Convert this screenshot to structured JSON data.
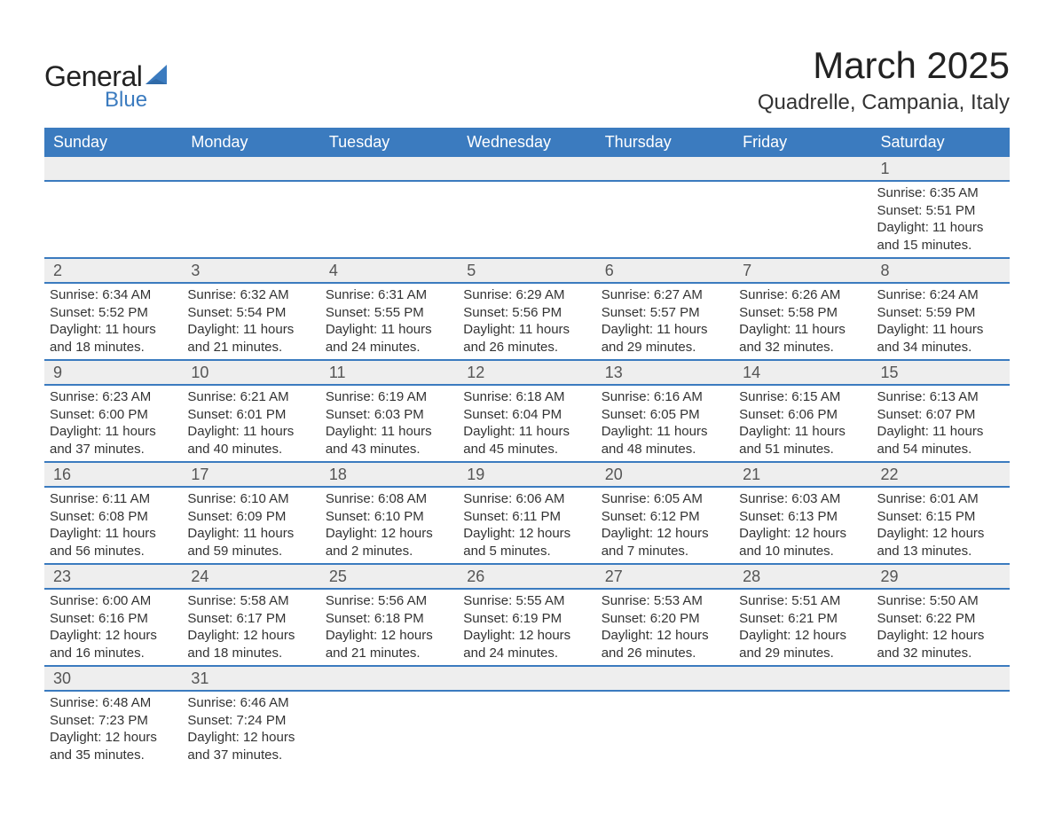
{
  "logo": {
    "word1": "General",
    "word2": "Blue",
    "text_color": "#222222",
    "accent_color": "#3b7bbf"
  },
  "title": "March 2025",
  "location": "Quadrelle, Campania, Italy",
  "colors": {
    "header_bg": "#3b7bbf",
    "header_text": "#ffffff",
    "daynum_bg": "#eeeeee",
    "row_border": "#3b7bbf",
    "body_text": "#333333"
  },
  "day_headers": [
    "Sunday",
    "Monday",
    "Tuesday",
    "Wednesday",
    "Thursday",
    "Friday",
    "Saturday"
  ],
  "weeks": [
    [
      null,
      null,
      null,
      null,
      null,
      null,
      {
        "n": "1",
        "sunrise": "Sunrise: 6:35 AM",
        "sunset": "Sunset: 5:51 PM",
        "d1": "Daylight: 11 hours",
        "d2": "and 15 minutes."
      }
    ],
    [
      {
        "n": "2",
        "sunrise": "Sunrise: 6:34 AM",
        "sunset": "Sunset: 5:52 PM",
        "d1": "Daylight: 11 hours",
        "d2": "and 18 minutes."
      },
      {
        "n": "3",
        "sunrise": "Sunrise: 6:32 AM",
        "sunset": "Sunset: 5:54 PM",
        "d1": "Daylight: 11 hours",
        "d2": "and 21 minutes."
      },
      {
        "n": "4",
        "sunrise": "Sunrise: 6:31 AM",
        "sunset": "Sunset: 5:55 PM",
        "d1": "Daylight: 11 hours",
        "d2": "and 24 minutes."
      },
      {
        "n": "5",
        "sunrise": "Sunrise: 6:29 AM",
        "sunset": "Sunset: 5:56 PM",
        "d1": "Daylight: 11 hours",
        "d2": "and 26 minutes."
      },
      {
        "n": "6",
        "sunrise": "Sunrise: 6:27 AM",
        "sunset": "Sunset: 5:57 PM",
        "d1": "Daylight: 11 hours",
        "d2": "and 29 minutes."
      },
      {
        "n": "7",
        "sunrise": "Sunrise: 6:26 AM",
        "sunset": "Sunset: 5:58 PM",
        "d1": "Daylight: 11 hours",
        "d2": "and 32 minutes."
      },
      {
        "n": "8",
        "sunrise": "Sunrise: 6:24 AM",
        "sunset": "Sunset: 5:59 PM",
        "d1": "Daylight: 11 hours",
        "d2": "and 34 minutes."
      }
    ],
    [
      {
        "n": "9",
        "sunrise": "Sunrise: 6:23 AM",
        "sunset": "Sunset: 6:00 PM",
        "d1": "Daylight: 11 hours",
        "d2": "and 37 minutes."
      },
      {
        "n": "10",
        "sunrise": "Sunrise: 6:21 AM",
        "sunset": "Sunset: 6:01 PM",
        "d1": "Daylight: 11 hours",
        "d2": "and 40 minutes."
      },
      {
        "n": "11",
        "sunrise": "Sunrise: 6:19 AM",
        "sunset": "Sunset: 6:03 PM",
        "d1": "Daylight: 11 hours",
        "d2": "and 43 minutes."
      },
      {
        "n": "12",
        "sunrise": "Sunrise: 6:18 AM",
        "sunset": "Sunset: 6:04 PM",
        "d1": "Daylight: 11 hours",
        "d2": "and 45 minutes."
      },
      {
        "n": "13",
        "sunrise": "Sunrise: 6:16 AM",
        "sunset": "Sunset: 6:05 PM",
        "d1": "Daylight: 11 hours",
        "d2": "and 48 minutes."
      },
      {
        "n": "14",
        "sunrise": "Sunrise: 6:15 AM",
        "sunset": "Sunset: 6:06 PM",
        "d1": "Daylight: 11 hours",
        "d2": "and 51 minutes."
      },
      {
        "n": "15",
        "sunrise": "Sunrise: 6:13 AM",
        "sunset": "Sunset: 6:07 PM",
        "d1": "Daylight: 11 hours",
        "d2": "and 54 minutes."
      }
    ],
    [
      {
        "n": "16",
        "sunrise": "Sunrise: 6:11 AM",
        "sunset": "Sunset: 6:08 PM",
        "d1": "Daylight: 11 hours",
        "d2": "and 56 minutes."
      },
      {
        "n": "17",
        "sunrise": "Sunrise: 6:10 AM",
        "sunset": "Sunset: 6:09 PM",
        "d1": "Daylight: 11 hours",
        "d2": "and 59 minutes."
      },
      {
        "n": "18",
        "sunrise": "Sunrise: 6:08 AM",
        "sunset": "Sunset: 6:10 PM",
        "d1": "Daylight: 12 hours",
        "d2": "and 2 minutes."
      },
      {
        "n": "19",
        "sunrise": "Sunrise: 6:06 AM",
        "sunset": "Sunset: 6:11 PM",
        "d1": "Daylight: 12 hours",
        "d2": "and 5 minutes."
      },
      {
        "n": "20",
        "sunrise": "Sunrise: 6:05 AM",
        "sunset": "Sunset: 6:12 PM",
        "d1": "Daylight: 12 hours",
        "d2": "and 7 minutes."
      },
      {
        "n": "21",
        "sunrise": "Sunrise: 6:03 AM",
        "sunset": "Sunset: 6:13 PM",
        "d1": "Daylight: 12 hours",
        "d2": "and 10 minutes."
      },
      {
        "n": "22",
        "sunrise": "Sunrise: 6:01 AM",
        "sunset": "Sunset: 6:15 PM",
        "d1": "Daylight: 12 hours",
        "d2": "and 13 minutes."
      }
    ],
    [
      {
        "n": "23",
        "sunrise": "Sunrise: 6:00 AM",
        "sunset": "Sunset: 6:16 PM",
        "d1": "Daylight: 12 hours",
        "d2": "and 16 minutes."
      },
      {
        "n": "24",
        "sunrise": "Sunrise: 5:58 AM",
        "sunset": "Sunset: 6:17 PM",
        "d1": "Daylight: 12 hours",
        "d2": "and 18 minutes."
      },
      {
        "n": "25",
        "sunrise": "Sunrise: 5:56 AM",
        "sunset": "Sunset: 6:18 PM",
        "d1": "Daylight: 12 hours",
        "d2": "and 21 minutes."
      },
      {
        "n": "26",
        "sunrise": "Sunrise: 5:55 AM",
        "sunset": "Sunset: 6:19 PM",
        "d1": "Daylight: 12 hours",
        "d2": "and 24 minutes."
      },
      {
        "n": "27",
        "sunrise": "Sunrise: 5:53 AM",
        "sunset": "Sunset: 6:20 PM",
        "d1": "Daylight: 12 hours",
        "d2": "and 26 minutes."
      },
      {
        "n": "28",
        "sunrise": "Sunrise: 5:51 AM",
        "sunset": "Sunset: 6:21 PM",
        "d1": "Daylight: 12 hours",
        "d2": "and 29 minutes."
      },
      {
        "n": "29",
        "sunrise": "Sunrise: 5:50 AM",
        "sunset": "Sunset: 6:22 PM",
        "d1": "Daylight: 12 hours",
        "d2": "and 32 minutes."
      }
    ],
    [
      {
        "n": "30",
        "sunrise": "Sunrise: 6:48 AM",
        "sunset": "Sunset: 7:23 PM",
        "d1": "Daylight: 12 hours",
        "d2": "and 35 minutes."
      },
      {
        "n": "31",
        "sunrise": "Sunrise: 6:46 AM",
        "sunset": "Sunset: 7:24 PM",
        "d1": "Daylight: 12 hours",
        "d2": "and 37 minutes."
      },
      null,
      null,
      null,
      null,
      null
    ]
  ]
}
